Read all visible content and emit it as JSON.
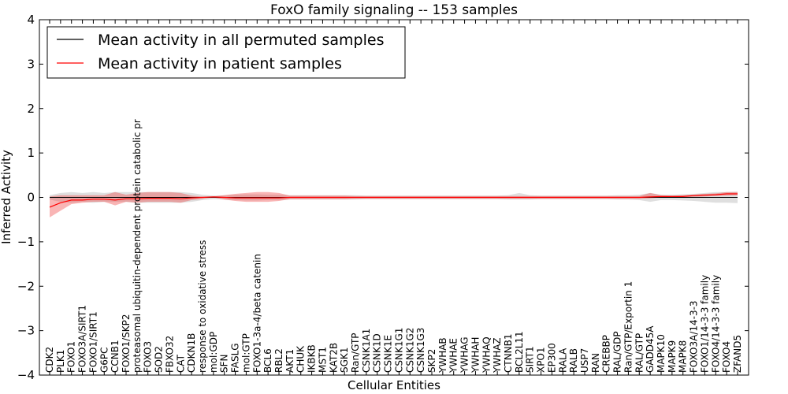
{
  "chart_data": {
    "type": "line",
    "title": "FoxO family signaling -- 153 samples",
    "xlabel": "Cellular Entities",
    "ylabel": "Inferred Activity",
    "ylim": [
      -4,
      4
    ],
    "yticks": [
      "4",
      "3",
      "2",
      "1",
      "0",
      "−1",
      "−2",
      "−3",
      "−4"
    ],
    "ytick_values": [
      4,
      3,
      2,
      1,
      0,
      -1,
      -2,
      -3,
      -4
    ],
    "legend": {
      "location": "upper-left",
      "entries": [
        {
          "label": "Mean activity in all permuted samples",
          "color": "#000000"
        },
        {
          "label": "Mean activity in patient samples",
          "color": "#ff0000"
        }
      ]
    },
    "categories": [
      "CDK2",
      "PLK1",
      "FOXO1",
      "FOXO3A/SIRT1",
      "FOXO1/SIRT1",
      "G6PC",
      "CCNB1",
      "FOXO1/SKP2",
      "proteasomal ubiquitin-dependent protein catabolic pr",
      "FOXO3",
      "SOD2",
      "FBXO32",
      "CAT",
      "CDKN1B",
      "response to oxidative stress",
      "mol:GDP",
      "SFN",
      "FASLG",
      "mol:GTP",
      "FOXO1-3a-4/beta catenin",
      "BCL6",
      "RBL2",
      "AKT1",
      "CHUK",
      "IKBKB",
      "MST1",
      "KAT2B",
      "SGK1",
      "Ran/GTP",
      "CSNK1A1",
      "CSNK1D",
      "CSNK1E",
      "CSNK1G1",
      "CSNK1G2",
      "CSNK1G3",
      "SKP2",
      "YWHAB",
      "YWHAE",
      "YWHAG",
      "YWHAH",
      "YWHAQ",
      "YWHAZ",
      "CTNNB1",
      "BCL2L11",
      "SIRT1",
      "XPO1",
      "EP300",
      "RALA",
      "RALB",
      "USP7",
      "RAN",
      "CREBBP",
      "RAL/GDP",
      "Ran/GTP/Exportin 1",
      "RAL/GTP",
      "GADD45A",
      "MAPK10",
      "MAPK9",
      "MAPK8",
      "FOXO3A/14-3-3",
      "FOXO1/14-3-3 family",
      "FOXO4/14-3-3 family",
      "FOXO4",
      "ZFAND5"
    ],
    "series": [
      {
        "name": "Mean activity in all permuted samples",
        "color": "#000000",
        "values": [
          0.0,
          0.0,
          0.0,
          0.0,
          0.0,
          0.0,
          0.0,
          0.0,
          0.0,
          0.0,
          0.0,
          0.0,
          0.0,
          0.0,
          0.0,
          0.0,
          0.0,
          0.0,
          0.0,
          0.0,
          0.0,
          0.0,
          0.0,
          0.0,
          0.0,
          0.0,
          0.0,
          0.0,
          0.0,
          0.0,
          0.0,
          0.0,
          0.0,
          0.0,
          0.0,
          0.0,
          0.0,
          0.0,
          0.0,
          0.0,
          0.0,
          0.0,
          0.0,
          0.0,
          0.0,
          0.0,
          0.0,
          0.0,
          0.0,
          0.0,
          0.0,
          0.0,
          0.0,
          0.0,
          0.0,
          0.0,
          0.0,
          0.0,
          0.0,
          0.0,
          0.0,
          0.0,
          0.0,
          0.0
        ],
        "band_lower": [
          -0.05,
          -0.1,
          -0.12,
          -0.1,
          -0.12,
          -0.1,
          -0.1,
          -0.1,
          -0.12,
          -0.12,
          -0.12,
          -0.12,
          -0.12,
          -0.1,
          -0.06,
          -0.04,
          -0.05,
          -0.06,
          -0.07,
          -0.07,
          -0.06,
          -0.06,
          -0.05,
          -0.05,
          -0.05,
          -0.05,
          -0.05,
          -0.05,
          -0.05,
          -0.04,
          -0.04,
          -0.04,
          -0.04,
          -0.04,
          -0.04,
          -0.04,
          -0.04,
          -0.04,
          -0.04,
          -0.04,
          -0.04,
          -0.04,
          -0.05,
          -0.05,
          -0.05,
          -0.04,
          -0.04,
          -0.04,
          -0.04,
          -0.04,
          -0.04,
          -0.04,
          -0.05,
          -0.05,
          -0.06,
          -0.1,
          -0.06,
          -0.06,
          -0.07,
          -0.08,
          -0.1,
          -0.12,
          -0.12,
          -0.13
        ],
        "band_upper": [
          0.05,
          0.1,
          0.12,
          0.1,
          0.12,
          0.1,
          0.12,
          0.12,
          0.12,
          0.12,
          0.12,
          0.12,
          0.12,
          0.1,
          0.06,
          0.04,
          0.05,
          0.06,
          0.07,
          0.07,
          0.06,
          0.06,
          0.05,
          0.05,
          0.05,
          0.05,
          0.05,
          0.05,
          0.05,
          0.04,
          0.04,
          0.04,
          0.04,
          0.04,
          0.04,
          0.04,
          0.04,
          0.04,
          0.04,
          0.04,
          0.04,
          0.04,
          0.05,
          0.1,
          0.05,
          0.04,
          0.04,
          0.04,
          0.04,
          0.04,
          0.04,
          0.04,
          0.05,
          0.05,
          0.06,
          0.1,
          0.06,
          0.06,
          0.07,
          0.08,
          0.1,
          0.12,
          0.12,
          0.13
        ]
      },
      {
        "name": "Mean activity in patient samples",
        "color": "#ff0000",
        "values": [
          -0.22,
          -0.12,
          -0.06,
          -0.06,
          -0.04,
          -0.04,
          -0.06,
          -0.03,
          -0.03,
          -0.02,
          -0.02,
          -0.02,
          -0.03,
          -0.01,
          0.0,
          0.01,
          0.0,
          -0.01,
          -0.01,
          -0.01,
          -0.01,
          -0.01,
          0.0,
          0.0,
          0.0,
          0.0,
          0.0,
          0.0,
          0.0,
          0.0,
          0.0,
          0.0,
          0.0,
          0.0,
          0.0,
          0.0,
          0.0,
          0.0,
          0.0,
          0.0,
          0.0,
          0.0,
          0.0,
          0.0,
          0.0,
          0.0,
          0.0,
          0.0,
          0.0,
          0.0,
          0.0,
          0.0,
          0.0,
          0.0,
          0.0,
          0.01,
          0.02,
          0.02,
          0.02,
          0.04,
          0.05,
          0.06,
          0.08,
          0.08
        ],
        "band_lower": [
          -0.45,
          -0.3,
          -0.15,
          -0.12,
          -0.1,
          -0.1,
          -0.18,
          -0.1,
          -0.12,
          -0.1,
          -0.1,
          -0.1,
          -0.12,
          -0.06,
          -0.03,
          0.0,
          -0.05,
          -0.08,
          -0.1,
          -0.1,
          -0.1,
          -0.08,
          -0.04,
          -0.04,
          -0.04,
          -0.04,
          -0.04,
          -0.04,
          -0.03,
          -0.03,
          -0.03,
          -0.03,
          -0.03,
          -0.03,
          -0.03,
          -0.03,
          -0.03,
          -0.03,
          -0.03,
          -0.03,
          -0.03,
          -0.03,
          -0.03,
          -0.03,
          -0.03,
          -0.03,
          -0.03,
          -0.03,
          -0.03,
          -0.03,
          -0.03,
          -0.03,
          -0.03,
          -0.03,
          -0.03,
          -0.02,
          0.0,
          0.0,
          0.0,
          0.01,
          0.02,
          0.03,
          0.04,
          0.05
        ],
        "band_upper": [
          0.02,
          0.05,
          0.05,
          0.05,
          0.05,
          0.05,
          0.12,
          0.06,
          0.1,
          0.12,
          0.12,
          0.12,
          0.1,
          0.04,
          0.02,
          0.02,
          0.05,
          0.08,
          0.1,
          0.12,
          0.12,
          0.1,
          0.04,
          0.04,
          0.04,
          0.04,
          0.04,
          0.04,
          0.03,
          0.03,
          0.03,
          0.03,
          0.03,
          0.03,
          0.03,
          0.03,
          0.03,
          0.03,
          0.03,
          0.03,
          0.03,
          0.03,
          0.03,
          0.03,
          0.03,
          0.03,
          0.03,
          0.03,
          0.03,
          0.03,
          0.03,
          0.03,
          0.03,
          0.03,
          0.03,
          0.1,
          0.05,
          0.04,
          0.05,
          0.06,
          0.08,
          0.09,
          0.12,
          0.12
        ]
      }
    ]
  }
}
